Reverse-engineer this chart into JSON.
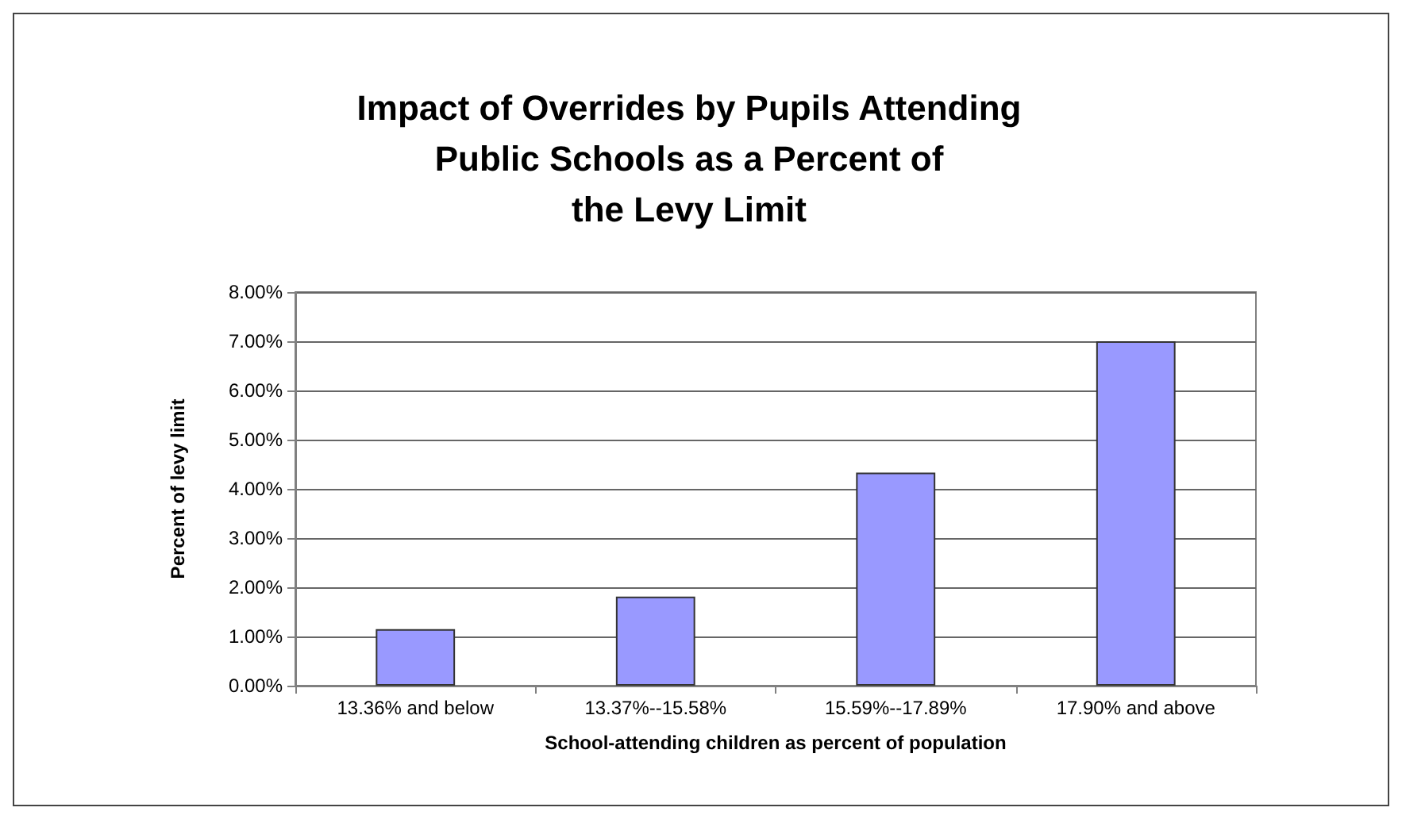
{
  "chart_data": {
    "type": "bar",
    "title": "Impact of Overrides by Pupils Attending\nPublic Schools as a Percent of\nthe Levy Limit",
    "xlabel": "School-attending children as percent of population",
    "ylabel": "Percent of levy limit",
    "categories": [
      "13.36% and below",
      "13.37%--15.58%",
      "15.59%--17.89%",
      "17.90% and above"
    ],
    "values": [
      1.15,
      1.81,
      4.33,
      7.0
    ],
    "color": "#9999ff",
    "ylim": [
      0,
      8
    ],
    "yticks": [
      {
        "value": 0,
        "label": "0.00%"
      },
      {
        "value": 1,
        "label": "1.00%"
      },
      {
        "value": 2,
        "label": "2.00%"
      },
      {
        "value": 3,
        "label": "3.00%"
      },
      {
        "value": 4,
        "label": "4.00%"
      },
      {
        "value": 5,
        "label": "5.00%"
      },
      {
        "value": 6,
        "label": "6.00%"
      },
      {
        "value": 7,
        "label": "7.00%"
      },
      {
        "value": 8,
        "label": "8.00%"
      }
    ],
    "grid": "y"
  }
}
